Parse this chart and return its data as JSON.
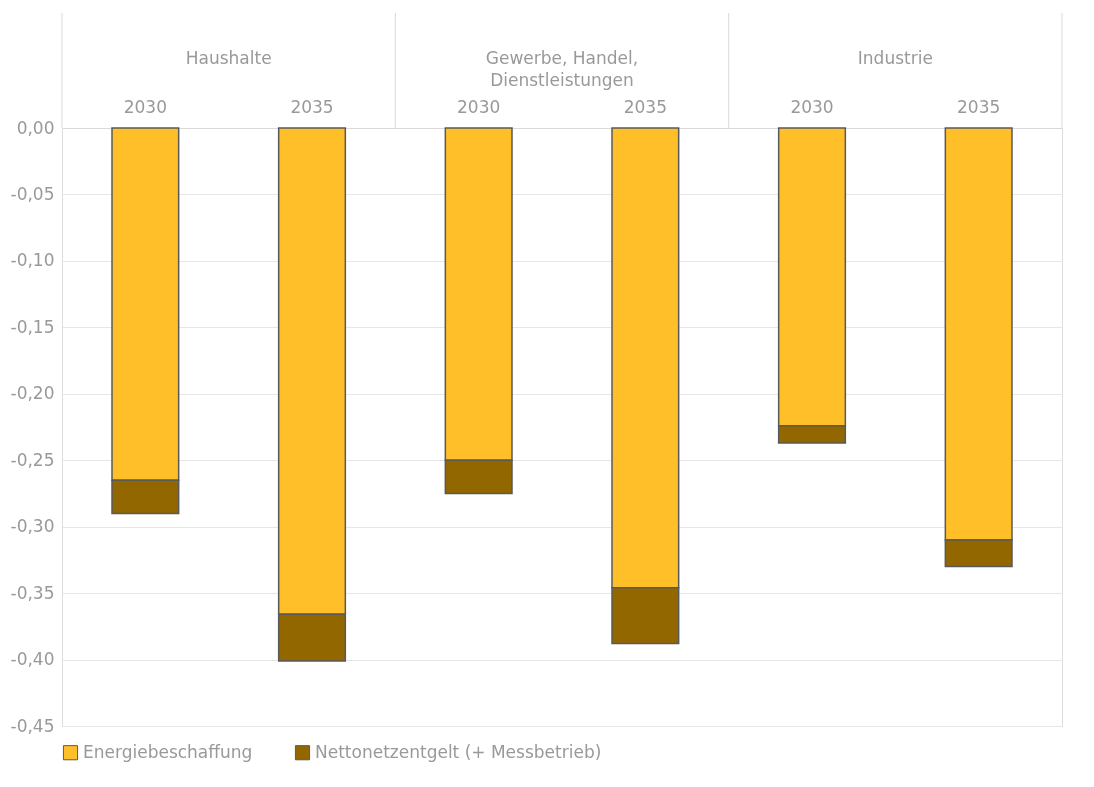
{
  "chart_data": {
    "type": "bar",
    "stacked": true,
    "categories": [
      "2030",
      "2035",
      "2030",
      "2035",
      "2030",
      "2035"
    ],
    "annotations": [
      "Haushalte",
      "Gewerbe, Handel,\nDienstleistungen",
      "Industrie"
    ],
    "series": [
      {
        "name": "Energiebeschaffung",
        "color": "#ffbf29",
        "values": [
          -0.265,
          -0.366,
          -0.25,
          -0.346,
          -0.224,
          -0.31
        ]
      },
      {
        "name": "Nettonetzentgelt (+ Messbetrieb)",
        "color": "#936700",
        "values": [
          -0.025,
          -0.035,
          -0.025,
          -0.042,
          -0.013,
          -0.02
        ]
      }
    ],
    "ylim": [
      -0.45,
      0
    ],
    "yticks": [
      {
        "value": 0,
        "label": "0,00"
      },
      {
        "value": -0.05,
        "label": "-0,05"
      },
      {
        "value": -0.1,
        "label": "-0,10"
      },
      {
        "value": -0.15,
        "label": "-0,15"
      },
      {
        "value": -0.2,
        "label": "-0,20"
      },
      {
        "value": -0.25,
        "label": "-0,25"
      },
      {
        "value": -0.3,
        "label": "-0,30"
      },
      {
        "value": -0.35,
        "label": "-0,35"
      },
      {
        "value": -0.4,
        "label": "-0,40"
      },
      {
        "value": -0.45,
        "label": "-0,45"
      }
    ],
    "grid": "y",
    "legend": "bottom"
  }
}
